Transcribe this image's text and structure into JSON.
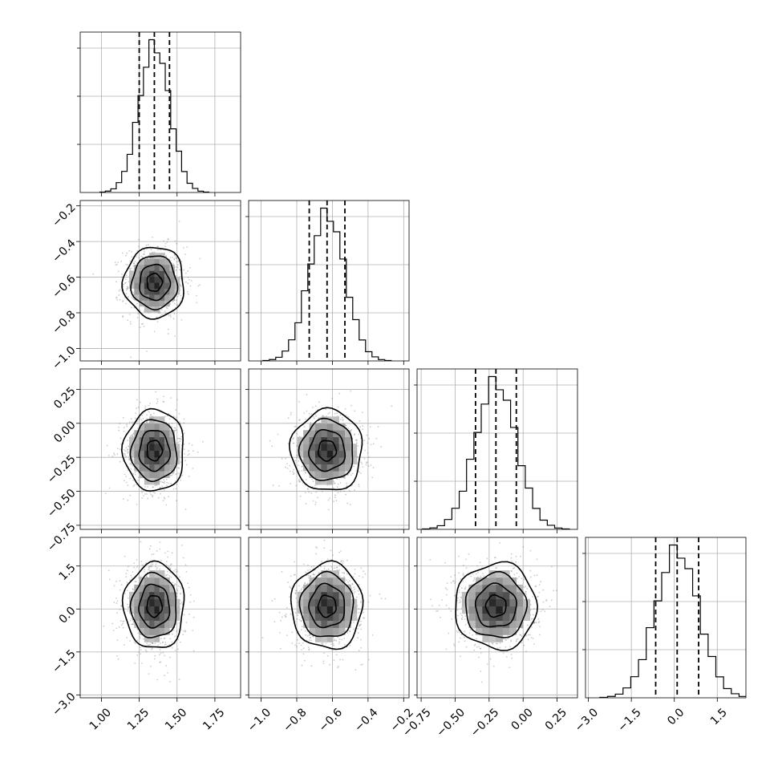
{
  "chart_data": {
    "type": "corner",
    "grid": true,
    "parameters": [
      {
        "index": 0,
        "mean": 1.35,
        "std": 0.1,
        "range": [
          0.86,
          1.92
        ],
        "quantiles": [
          1.25,
          1.35,
          1.45
        ],
        "ticks": [
          "1.00",
          "1.25",
          "1.50",
          "1.75"
        ],
        "tick_values": [
          1.0,
          1.25,
          1.5,
          1.75
        ]
      },
      {
        "index": 1,
        "mean": -0.63,
        "std": 0.1,
        "range": [
          -1.07,
          -0.17
        ],
        "quantiles": [
          -0.73,
          -0.63,
          -0.53
        ],
        "ticks": [
          "−1.0",
          "−0.8",
          "−0.6",
          "−0.4",
          "−0.2"
        ],
        "tick_values": [
          -1.0,
          -0.8,
          -0.6,
          -0.4,
          -0.2
        ]
      },
      {
        "index": 2,
        "mean": -0.2,
        "std": 0.15,
        "range": [
          -0.78,
          0.4
        ],
        "quantiles": [
          -0.35,
          -0.2,
          -0.05
        ],
        "ticks": [
          "−0.75",
          "−0.50",
          "−0.25",
          "0.00",
          "0.25"
        ],
        "tick_values": [
          -0.75,
          -0.5,
          -0.25,
          0.0,
          0.25
        ]
      },
      {
        "index": 3,
        "mean": 0.1,
        "std": 0.75,
        "range": [
          -3.1,
          2.5
        ],
        "quantiles": [
          -0.65,
          0.1,
          0.85
        ],
        "ticks": [
          "−3.0",
          "−1.5",
          "0.0",
          "1.5"
        ],
        "tick_values": [
          -3.0,
          -1.5,
          0.0,
          1.5
        ]
      }
    ],
    "histogram_bins": 20,
    "contour_levels_sigma": [
      0.5,
      1.0,
      1.5,
      2.0
    ],
    "scatter_samples_per_panel": 900
  }
}
